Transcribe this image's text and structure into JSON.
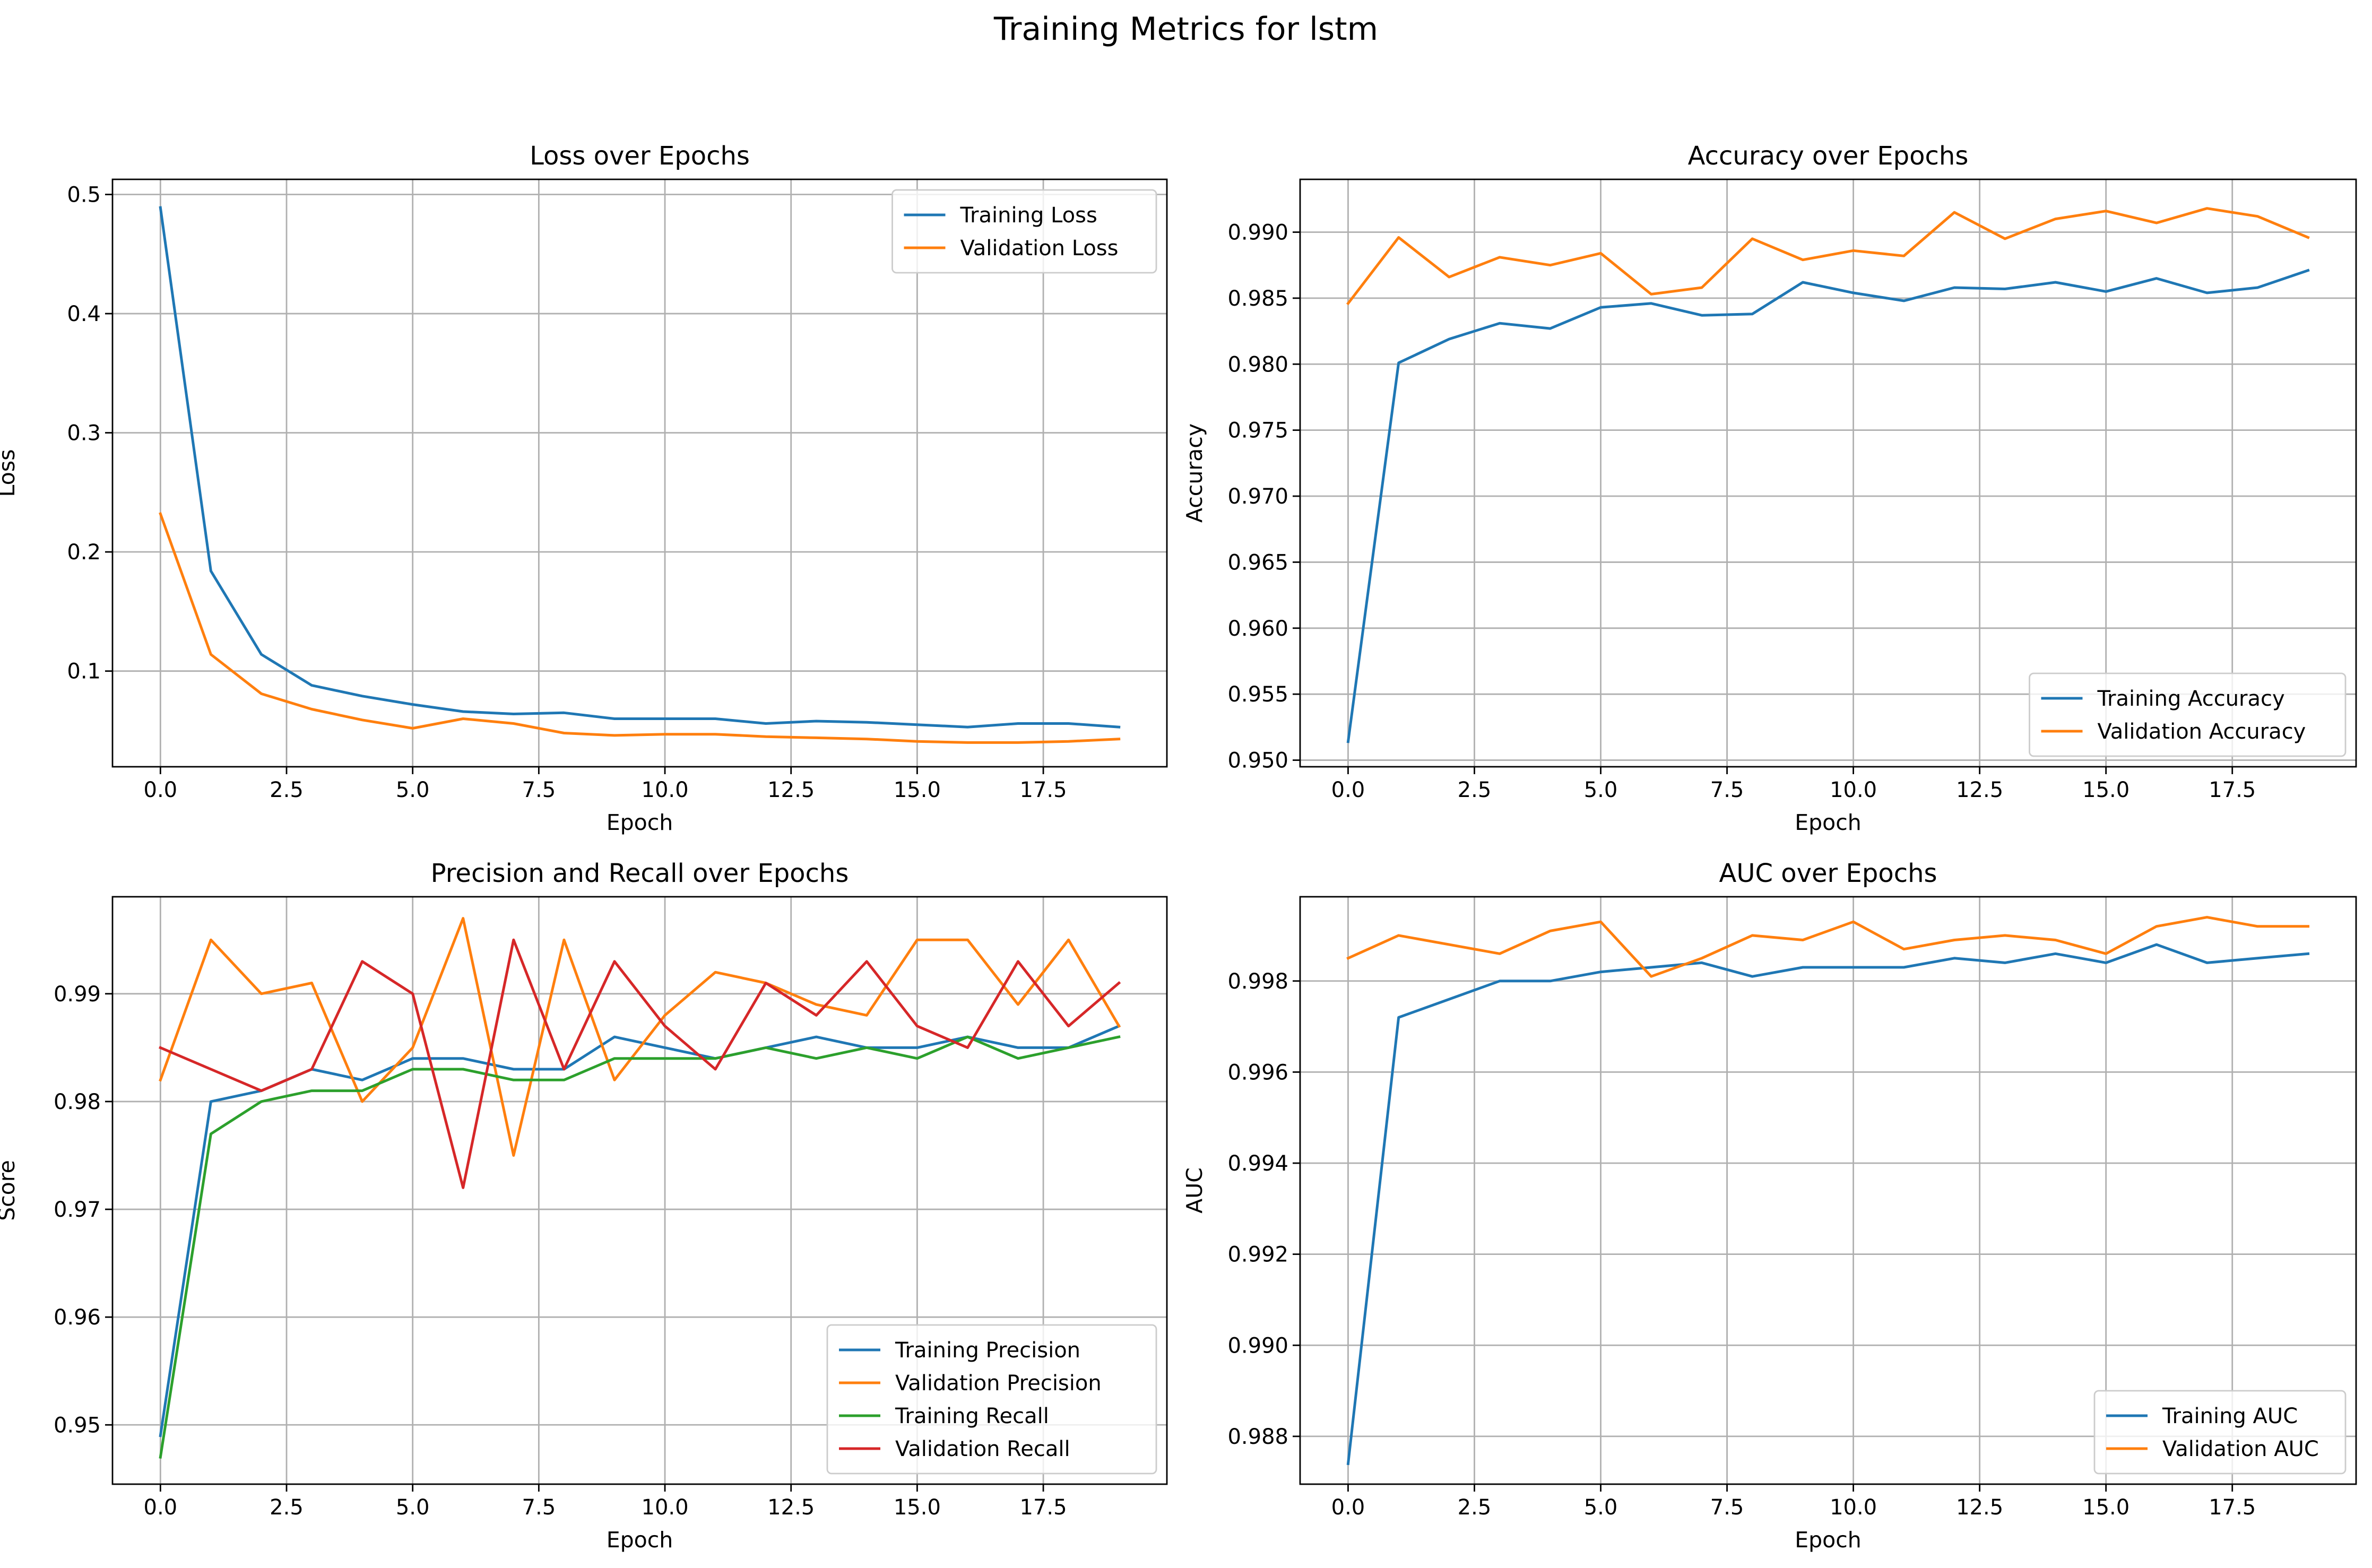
{
  "figure": {
    "title": "Training Metrics for lstm"
  },
  "chart_data": [
    {
      "type": "line",
      "title": "Loss over Epochs",
      "xlabel": "Epoch",
      "ylabel": "Loss",
      "xlim": [
        -0.95,
        19.95
      ],
      "ylim": [
        0.0197,
        0.5127
      ],
      "xticks": [
        0,
        2.5,
        5,
        7.5,
        10,
        12.5,
        15,
        17.5
      ],
      "xtick_labels": [
        "0.0",
        "2.5",
        "5.0",
        "7.5",
        "10.0",
        "12.5",
        "15.0",
        "17.5"
      ],
      "yticks": [
        0.1,
        0.2,
        0.3,
        0.4,
        0.5
      ],
      "ytick_labels": [
        "0.1",
        "0.2",
        "0.3",
        "0.4",
        "0.5"
      ],
      "grid": true,
      "legend_loc": "upper right",
      "x": [
        0,
        1,
        2,
        3,
        4,
        5,
        6,
        7,
        8,
        9,
        10,
        11,
        12,
        13,
        14,
        15,
        16,
        17,
        18,
        19
      ],
      "series": [
        {
          "name": "Training Loss",
          "color": "#1f77b4",
          "values": [
            0.489,
            0.184,
            0.114,
            0.088,
            0.079,
            0.072,
            0.066,
            0.064,
            0.065,
            0.06,
            0.06,
            0.06,
            0.056,
            0.058,
            0.057,
            0.055,
            0.053,
            0.056,
            0.056,
            0.053
          ]
        },
        {
          "name": "Validation Loss",
          "color": "#ff7f0e",
          "values": [
            0.232,
            0.114,
            0.081,
            0.068,
            0.059,
            0.052,
            0.06,
            0.056,
            0.048,
            0.046,
            0.047,
            0.047,
            0.045,
            0.044,
            0.043,
            0.041,
            0.04,
            0.04,
            0.041,
            0.043
          ]
        }
      ]
    },
    {
      "type": "line",
      "title": "Accuracy over Epochs",
      "xlabel": "Epoch",
      "ylabel": "Accuracy",
      "xlim": [
        -0.95,
        19.95
      ],
      "ylim": [
        0.9495,
        0.994
      ],
      "xticks": [
        0,
        2.5,
        5,
        7.5,
        10,
        12.5,
        15,
        17.5
      ],
      "xtick_labels": [
        "0.0",
        "2.5",
        "5.0",
        "7.5",
        "10.0",
        "12.5",
        "15.0",
        "17.5"
      ],
      "yticks": [
        0.95,
        0.955,
        0.96,
        0.965,
        0.97,
        0.975,
        0.98,
        0.985,
        0.99
      ],
      "ytick_labels": [
        "0.950",
        "0.955",
        "0.960",
        "0.965",
        "0.970",
        "0.975",
        "0.980",
        "0.985",
        "0.990"
      ],
      "grid": true,
      "legend_loc": "lower right",
      "x": [
        0,
        1,
        2,
        3,
        4,
        5,
        6,
        7,
        8,
        9,
        10,
        11,
        12,
        13,
        14,
        15,
        16,
        17,
        18,
        19
      ],
      "series": [
        {
          "name": "Training Accuracy",
          "color": "#1f77b4",
          "values": [
            0.9514,
            0.9801,
            0.9819,
            0.9831,
            0.9827,
            0.9843,
            0.9846,
            0.9837,
            0.9838,
            0.9862,
            0.9854,
            0.9848,
            0.9858,
            0.9857,
            0.9862,
            0.9855,
            0.9865,
            0.9854,
            0.9858,
            0.9871
          ]
        },
        {
          "name": "Validation Accuracy",
          "color": "#ff7f0e",
          "values": [
            0.9846,
            0.9896,
            0.9866,
            0.9881,
            0.9875,
            0.9884,
            0.9853,
            0.9858,
            0.9895,
            0.9879,
            0.9886,
            0.9882,
            0.9915,
            0.9895,
            0.991,
            0.9916,
            0.9907,
            0.9918,
            0.9912,
            0.9896
          ]
        }
      ]
    },
    {
      "type": "line",
      "title": "Precision and Recall over Epochs",
      "xlabel": "Epoch",
      "ylabel": "Score",
      "xlim": [
        -0.95,
        19.95
      ],
      "ylim": [
        0.9445,
        0.999
      ],
      "xticks": [
        0,
        2.5,
        5,
        7.5,
        10,
        12.5,
        15,
        17.5
      ],
      "xtick_labels": [
        "0.0",
        "2.5",
        "5.0",
        "7.5",
        "10.0",
        "12.5",
        "15.0",
        "17.5"
      ],
      "yticks": [
        0.95,
        0.96,
        0.97,
        0.98,
        0.99
      ],
      "ytick_labels": [
        "0.95",
        "0.96",
        "0.97",
        "0.98",
        "0.99"
      ],
      "grid": true,
      "legend_loc": "lower right",
      "x": [
        0,
        1,
        2,
        3,
        4,
        5,
        6,
        7,
        8,
        9,
        10,
        11,
        12,
        13,
        14,
        15,
        16,
        17,
        18,
        19
      ],
      "series": [
        {
          "name": "Training Precision",
          "color": "#1f77b4",
          "values": [
            0.949,
            0.98,
            0.981,
            0.983,
            0.982,
            0.984,
            0.984,
            0.983,
            0.983,
            0.986,
            0.985,
            0.984,
            0.985,
            0.986,
            0.985,
            0.985,
            0.986,
            0.985,
            0.985,
            0.987
          ]
        },
        {
          "name": "Validation Precision",
          "color": "#ff7f0e",
          "values": [
            0.982,
            0.995,
            0.99,
            0.991,
            0.98,
            0.985,
            0.997,
            0.975,
            0.995,
            0.982,
            0.988,
            0.992,
            0.991,
            0.989,
            0.988,
            0.995,
            0.995,
            0.989,
            0.995,
            0.987
          ]
        },
        {
          "name": "Training Recall",
          "color": "#2ca02c",
          "values": [
            0.947,
            0.977,
            0.98,
            0.981,
            0.981,
            0.983,
            0.983,
            0.982,
            0.982,
            0.984,
            0.984,
            0.984,
            0.985,
            0.984,
            0.985,
            0.984,
            0.986,
            0.984,
            0.985,
            0.986
          ]
        },
        {
          "name": "Validation Recall",
          "color": "#d62728",
          "values": [
            0.985,
            0.983,
            0.981,
            0.983,
            0.993,
            0.99,
            0.972,
            0.995,
            0.983,
            0.993,
            0.987,
            0.983,
            0.991,
            0.988,
            0.993,
            0.987,
            0.985,
            0.993,
            0.987,
            0.991
          ]
        }
      ]
    },
    {
      "type": "line",
      "title": "AUC over Epochs",
      "xlabel": "Epoch",
      "ylabel": "AUC",
      "xlim": [
        -0.95,
        19.95
      ],
      "ylim": [
        0.98695,
        0.99985
      ],
      "xticks": [
        0,
        2.5,
        5,
        7.5,
        10,
        12.5,
        15,
        17.5
      ],
      "xtick_labels": [
        "0.0",
        "2.5",
        "5.0",
        "7.5",
        "10.0",
        "12.5",
        "15.0",
        "17.5"
      ],
      "yticks": [
        0.988,
        0.99,
        0.992,
        0.994,
        0.996,
        0.998
      ],
      "ytick_labels": [
        "0.988",
        "0.990",
        "0.992",
        "0.994",
        "0.996",
        "0.998"
      ],
      "grid": true,
      "legend_loc": "lower right",
      "x": [
        0,
        1,
        2,
        3,
        4,
        5,
        6,
        7,
        8,
        9,
        10,
        11,
        12,
        13,
        14,
        15,
        16,
        17,
        18,
        19
      ],
      "series": [
        {
          "name": "Training AUC",
          "color": "#1f77b4",
          "values": [
            0.9874,
            0.9972,
            0.9976,
            0.998,
            0.998,
            0.9982,
            0.9983,
            0.9984,
            0.9981,
            0.9983,
            0.9983,
            0.9983,
            0.9985,
            0.9984,
            0.9986,
            0.9984,
            0.9988,
            0.9984,
            0.9985,
            0.9986
          ]
        },
        {
          "name": "Validation AUC",
          "color": "#ff7f0e",
          "values": [
            0.9985,
            0.999,
            0.9988,
            0.9986,
            0.9991,
            0.9993,
            0.9981,
            0.9985,
            0.999,
            0.9989,
            0.9993,
            0.9987,
            0.9989,
            0.999,
            0.9989,
            0.9986,
            0.9992,
            0.9994,
            0.9992,
            0.9992
          ]
        }
      ]
    }
  ]
}
